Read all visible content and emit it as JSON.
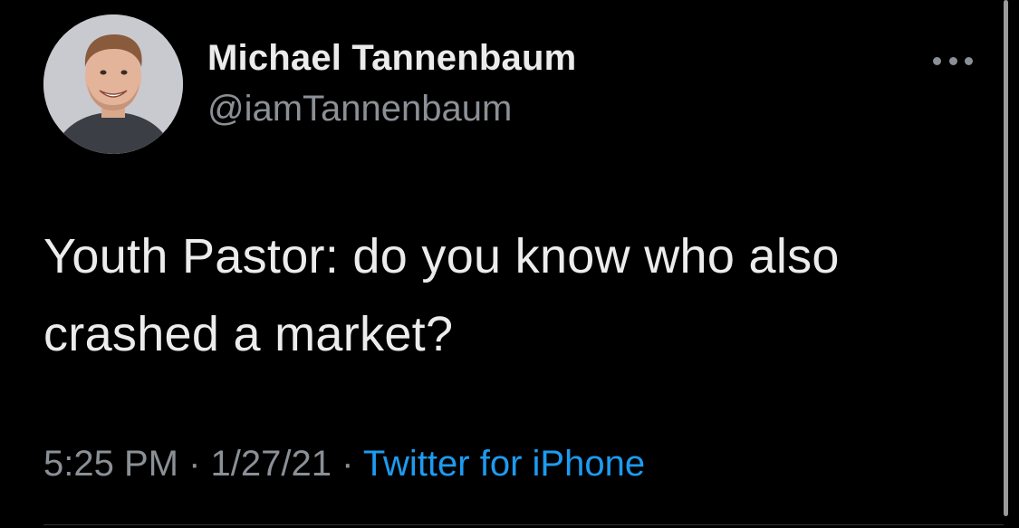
{
  "tweet": {
    "author": {
      "display_name": "Michael Tannenbaum",
      "handle": "@iamTannenbaum",
      "avatar_icon": "profile-photo"
    },
    "text": "Youth Pastor: do you know who also crashed a market?",
    "meta": {
      "time": "5:25 PM",
      "separator": " · ",
      "date": "1/27/21",
      "source": "Twitter for iPhone"
    },
    "more_icon": "more-horizontal-icon"
  },
  "colors": {
    "background": "#000000",
    "name": "#ebebeb",
    "secondary": "#8b9096",
    "link": "#1d9bf0"
  }
}
